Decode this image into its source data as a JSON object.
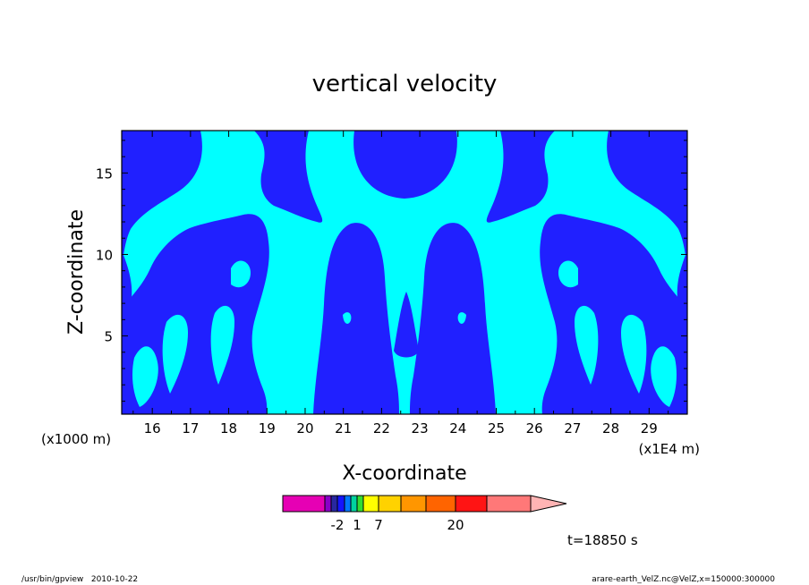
{
  "chart_data": {
    "type": "contour",
    "title": "vertical velocity",
    "xlabel": "X-coordinate",
    "ylabel": "Z-coordinate",
    "x_unit_note": "(x1E4 m)",
    "y_unit_note": "(x1000 m)",
    "xlim": [
      15.2,
      30
    ],
    "ylim": [
      0.2,
      17.6
    ],
    "x_ticks": [
      16,
      17,
      18,
      19,
      20,
      21,
      22,
      23,
      24,
      25,
      26,
      27,
      28,
      29
    ],
    "y_ticks": [
      5,
      10,
      15
    ],
    "fill_colors": {
      "background": "#00ffff",
      "contour": "#2020ff"
    },
    "colorbar": {
      "colors": [
        "#e600b4",
        "#8a00c8",
        "#2828a0",
        "#1414ff",
        "#0078ff",
        "#00d2a0",
        "#32dc32",
        "#ffff00",
        "#ffd200",
        "#ff9600",
        "#ff6400",
        "#ff1414",
        "#ff7878",
        "#ffb4b4"
      ],
      "widths": [
        47,
        7,
        7,
        8,
        7,
        7,
        7,
        17,
        25,
        28,
        33,
        35,
        49,
        40
      ],
      "tick_labels": [
        {
          "label": "-2",
          "at_segment": 3
        },
        {
          "label": "1",
          "at_segment": 6
        },
        {
          "label": "7",
          "at_segment": 8
        },
        {
          "label": "20",
          "at_segment": 11
        }
      ]
    },
    "time_label": "t=18850 s"
  },
  "footer": {
    "left": "/usr/bin/gpview   2010-10-22",
    "right": "arare-earth_VelZ.nc@VelZ,x=150000:300000"
  }
}
